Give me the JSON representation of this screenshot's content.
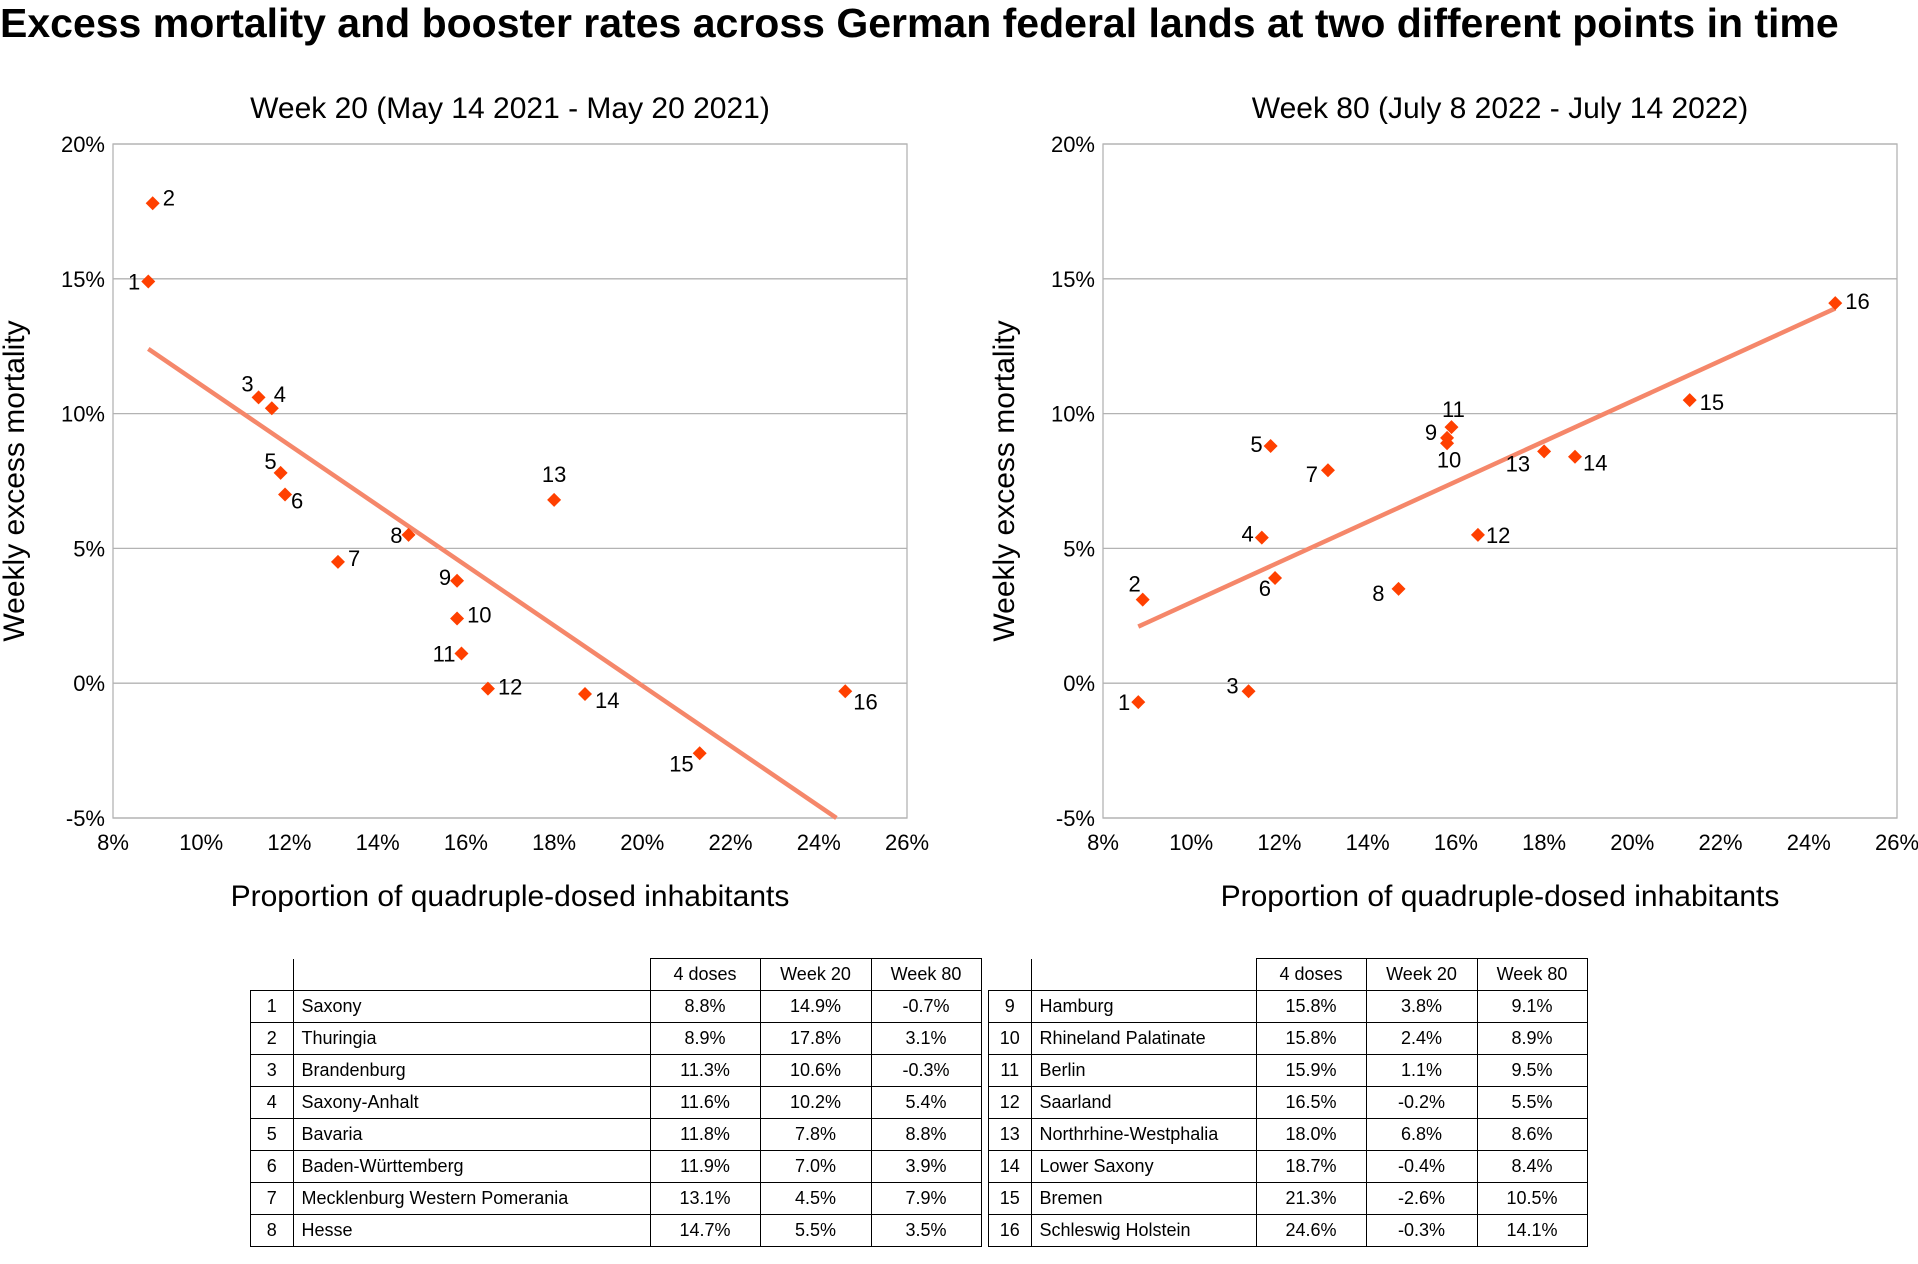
{
  "title": "Excess mortality and booster rates across German federal lands at two different points in time",
  "chart_data": [
    {
      "type": "scatter",
      "title": "Week 20 (May 14 2021 - May 20 2021)",
      "xlabel": "Proportion of quadruple-dosed inhabitants",
      "ylabel": "Weekly excess mortality",
      "xlim": [
        8,
        26
      ],
      "ylim": [
        -5,
        20
      ],
      "x_ticks": [
        "8%",
        "10%",
        "12%",
        "14%",
        "16%",
        "18%",
        "20%",
        "22%",
        "24%",
        "26%"
      ],
      "y_ticks": [
        "-5%",
        "0%",
        "5%",
        "10%",
        "15%",
        "20%"
      ],
      "grid": "horizontal",
      "color": "#ff4000",
      "trend_color": "#f5876a",
      "trendline": {
        "x": [
          8.8,
          24.4
        ],
        "y": [
          12.4,
          -5.0
        ]
      },
      "points": [
        {
          "label": "1",
          "x": 8.8,
          "y": 14.9
        },
        {
          "label": "2",
          "x": 8.9,
          "y": 17.8
        },
        {
          "label": "3",
          "x": 11.3,
          "y": 10.6
        },
        {
          "label": "4",
          "x": 11.6,
          "y": 10.2
        },
        {
          "label": "5",
          "x": 11.8,
          "y": 7.8
        },
        {
          "label": "6",
          "x": 11.9,
          "y": 7.0
        },
        {
          "label": "7",
          "x": 13.1,
          "y": 4.5
        },
        {
          "label": "8",
          "x": 14.7,
          "y": 5.5
        },
        {
          "label": "9",
          "x": 15.8,
          "y": 3.8
        },
        {
          "label": "10",
          "x": 15.8,
          "y": 2.4
        },
        {
          "label": "11",
          "x": 15.9,
          "y": 1.1
        },
        {
          "label": "12",
          "x": 16.5,
          "y": -0.2
        },
        {
          "label": "13",
          "x": 18.0,
          "y": 6.8
        },
        {
          "label": "14",
          "x": 18.7,
          "y": -0.4
        },
        {
          "label": "15",
          "x": 21.3,
          "y": -2.6
        },
        {
          "label": "16",
          "x": 24.6,
          "y": -0.3
        }
      ]
    },
    {
      "type": "scatter",
      "title": "Week 80 (July 8 2022 - July 14 2022)",
      "xlabel": "Proportion of quadruple-dosed inhabitants",
      "ylabel": "Weekly excess mortality",
      "xlim": [
        8,
        26
      ],
      "ylim": [
        -5,
        20
      ],
      "x_ticks": [
        "8%",
        "10%",
        "12%",
        "14%",
        "16%",
        "18%",
        "20%",
        "22%",
        "24%",
        "26%"
      ],
      "y_ticks": [
        "-5%",
        "0%",
        "5%",
        "10%",
        "15%",
        "20%"
      ],
      "grid": "horizontal",
      "color": "#ff4000",
      "trend_color": "#f5876a",
      "trendline": {
        "x": [
          8.8,
          24.6
        ],
        "y": [
          2.1,
          13.9
        ]
      },
      "points": [
        {
          "label": "1",
          "x": 8.8,
          "y": -0.7
        },
        {
          "label": "2",
          "x": 8.9,
          "y": 3.1
        },
        {
          "label": "3",
          "x": 11.3,
          "y": -0.3
        },
        {
          "label": "4",
          "x": 11.6,
          "y": 5.4
        },
        {
          "label": "5",
          "x": 11.8,
          "y": 8.8
        },
        {
          "label": "6",
          "x": 11.9,
          "y": 3.9
        },
        {
          "label": "7",
          "x": 13.1,
          "y": 7.9
        },
        {
          "label": "8",
          "x": 14.7,
          "y": 3.5
        },
        {
          "label": "9",
          "x": 15.8,
          "y": 9.1
        },
        {
          "label": "10",
          "x": 15.8,
          "y": 8.9
        },
        {
          "label": "11",
          "x": 15.9,
          "y": 9.5
        },
        {
          "label": "12",
          "x": 16.5,
          "y": 5.5
        },
        {
          "label": "13",
          "x": 18.0,
          "y": 8.6
        },
        {
          "label": "14",
          "x": 18.7,
          "y": 8.4
        },
        {
          "label": "15",
          "x": 21.3,
          "y": 10.5
        },
        {
          "label": "16",
          "x": 24.6,
          "y": 14.1
        }
      ]
    }
  ],
  "tables": [
    {
      "headers": [
        "4 doses",
        "Week 20",
        "Week 80"
      ],
      "rows": [
        [
          "1",
          "Saxony",
          "8.8%",
          "14.9%",
          "-0.7%"
        ],
        [
          "2",
          "Thuringia",
          "8.9%",
          "17.8%",
          "3.1%"
        ],
        [
          "3",
          "Brandenburg",
          "11.3%",
          "10.6%",
          "-0.3%"
        ],
        [
          "4",
          "Saxony-Anhalt",
          "11.6%",
          "10.2%",
          "5.4%"
        ],
        [
          "5",
          "Bavaria",
          "11.8%",
          "7.8%",
          "8.8%"
        ],
        [
          "6",
          "Baden-Württemberg",
          "11.9%",
          "7.0%",
          "3.9%"
        ],
        [
          "7",
          "Mecklenburg Western Pomerania",
          "13.1%",
          "4.5%",
          "7.9%"
        ],
        [
          "8",
          "Hesse",
          "14.7%",
          "5.5%",
          "3.5%"
        ]
      ]
    },
    {
      "headers": [
        "4 doses",
        "Week 20",
        "Week 80"
      ],
      "rows": [
        [
          "9",
          "Hamburg",
          "15.8%",
          "3.8%",
          "9.1%"
        ],
        [
          "10",
          "Rhineland Palatinate",
          "15.8%",
          "2.4%",
          "8.9%"
        ],
        [
          "11",
          "Berlin",
          "15.9%",
          "1.1%",
          "9.5%"
        ],
        [
          "12",
          "Saarland",
          "16.5%",
          "-0.2%",
          "5.5%"
        ],
        [
          "13",
          "Northrhine-Westphalia",
          "18.0%",
          "6.8%",
          "8.6%"
        ],
        [
          "14",
          "Lower Saxony",
          "18.7%",
          "-0.4%",
          "8.4%"
        ],
        [
          "15",
          "Bremen",
          "21.3%",
          "-2.6%",
          "10.5%"
        ],
        [
          "16",
          "Schleswig Holstein",
          "24.6%",
          "-0.3%",
          "14.1%"
        ]
      ]
    }
  ]
}
